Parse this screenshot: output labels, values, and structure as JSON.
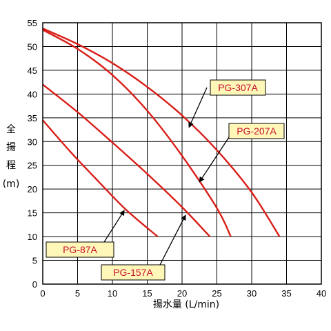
{
  "chart_data": {
    "type": "line",
    "xlabel": "揚水量 (L/min)",
    "ylabel": [
      "全",
      "揚",
      "程",
      "(m)"
    ],
    "xlim": [
      0,
      40
    ],
    "ylim": [
      0,
      55
    ],
    "x_ticks": [
      0,
      5,
      10,
      15,
      20,
      25,
      30,
      35,
      40
    ],
    "y_ticks": [
      0,
      5,
      10,
      15,
      20,
      25,
      30,
      35,
      40,
      45,
      50,
      55
    ],
    "grid": true,
    "line_color": "#d91e18",
    "callout_fill": "#fff7b8",
    "series": [
      {
        "name": "PG-87A",
        "points": [
          [
            0,
            34.5
          ],
          [
            4,
            27.8
          ],
          [
            8,
            21.6
          ],
          [
            12,
            15.6
          ],
          [
            16.5,
            10
          ]
        ]
      },
      {
        "name": "PG-157A",
        "points": [
          [
            0,
            42
          ],
          [
            5,
            36.2
          ],
          [
            10,
            29.8
          ],
          [
            15,
            23.2
          ],
          [
            20,
            16.2
          ],
          [
            24,
            10
          ]
        ]
      },
      {
        "name": "PG-207A",
        "points": [
          [
            0,
            53.5
          ],
          [
            5,
            49.5
          ],
          [
            10,
            44
          ],
          [
            15,
            36.5
          ],
          [
            20,
            27
          ],
          [
            25,
            16
          ],
          [
            27,
            10
          ]
        ]
      },
      {
        "name": "PG-307A",
        "points": [
          [
            0,
            53.8
          ],
          [
            5,
            50.5
          ],
          [
            10,
            46.5
          ],
          [
            15,
            41.5
          ],
          [
            20,
            35.5
          ],
          [
            25,
            28.2
          ],
          [
            30,
            19.3
          ],
          [
            34,
            10
          ]
        ]
      }
    ],
    "callouts": [
      {
        "label": "PG-307A",
        "arrow_to": [
          21,
          33
        ]
      },
      {
        "label": "PG-207A",
        "arrow_to": [
          22.5,
          21.5
        ]
      },
      {
        "label": "PG-87A",
        "arrow_to": [
          11.7,
          15.5
        ]
      },
      {
        "label": "PG-157A",
        "arrow_to": [
          20.5,
          14.5
        ]
      }
    ]
  }
}
